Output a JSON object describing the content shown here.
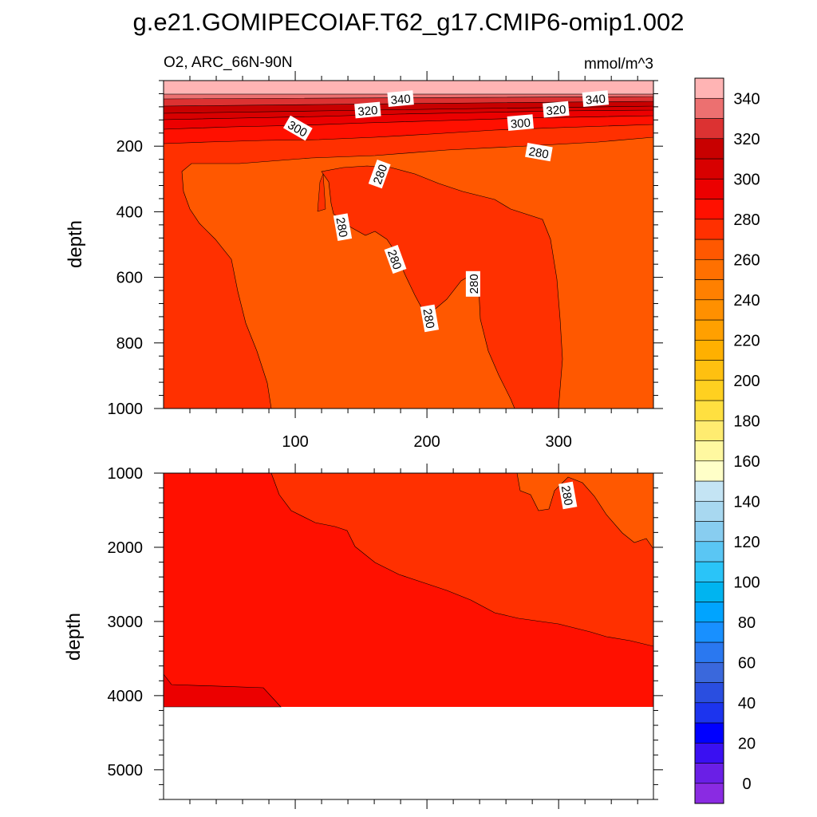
{
  "chart_data": {
    "type": "contour",
    "title": "g.e21.GOMIPECOIAF.T62_g17.CMIP6-omip1.002",
    "variable_label": "O2, ARC_66N-90N",
    "units_label": "mmol/m^3",
    "x_range": [
      0,
      372
    ],
    "x_ticks": [
      100,
      200,
      300
    ],
    "colorbar": {
      "levels": [
        0,
        10,
        20,
        30,
        40,
        50,
        60,
        70,
        80,
        90,
        100,
        110,
        120,
        130,
        140,
        150,
        160,
        170,
        180,
        190,
        200,
        210,
        220,
        230,
        240,
        250,
        260,
        270,
        280,
        290,
        300,
        310,
        320,
        330,
        340,
        350
      ],
      "labels": [
        "0",
        "20",
        "40",
        "60",
        "80",
        "100",
        "120",
        "140",
        "160",
        "180",
        "200",
        "220",
        "240",
        "260",
        "280",
        "300",
        "320",
        "340"
      ],
      "colors": [
        "#8a2be2",
        "#6a1fe6",
        "#3a10f2",
        "#0000ff",
        "#1c34ee",
        "#2a4ee0",
        "#3a68dc",
        "#2a78f0",
        "#1890ff",
        "#00a4ff",
        "#00b4f0",
        "#2ac4f8",
        "#5ac6f4",
        "#88cdf0",
        "#a8d8f0",
        "#c4e4f4",
        "#ffffc8",
        "#fff8a0",
        "#ffec70",
        "#ffe040",
        "#ffd020",
        "#ffc010",
        "#ffb000",
        "#ffa000",
        "#ff9000",
        "#ff8000",
        "#ff7000",
        "#ff5800",
        "#ff3000",
        "#ff1000",
        "#ec0000",
        "#d80000",
        "#c80000",
        "#dc3232",
        "#ec7070",
        "#ffb4b4"
      ]
    },
    "panels": [
      {
        "id": "upper",
        "ylabel": "depth",
        "y_range": [
          0,
          1000
        ],
        "y_ticks": [
          200,
          400,
          600,
          800,
          1000
        ],
        "contour_labels": [
          {
            "text": "340",
            "x": 180,
            "y": 55
          },
          {
            "text": "340",
            "x": 328,
            "y": 55
          },
          {
            "text": "320",
            "x": 155,
            "y": 90
          },
          {
            "text": "320",
            "x": 298,
            "y": 88
          },
          {
            "text": "300",
            "x": 102,
            "y": 145
          },
          {
            "text": "300",
            "x": 271,
            "y": 128
          },
          {
            "text": "280",
            "x": 285,
            "y": 218
          },
          {
            "text": "280",
            "x": 164,
            "y": 285
          },
          {
            "text": "280",
            "x": 136,
            "y": 447
          },
          {
            "text": "280",
            "x": 176,
            "y": 545
          },
          {
            "text": "280",
            "x": 235,
            "y": 620
          },
          {
            "text": "280",
            "x": 202,
            "y": 725
          }
        ]
      },
      {
        "id": "lower",
        "ylabel": "depth",
        "y_range": [
          1000,
          5400
        ],
        "y_ticks": [
          1000,
          2000,
          3000,
          4000,
          5000
        ],
        "contour_labels": [
          {
            "text": "280",
            "x": 307,
            "y": 1300
          }
        ]
      }
    ]
  }
}
